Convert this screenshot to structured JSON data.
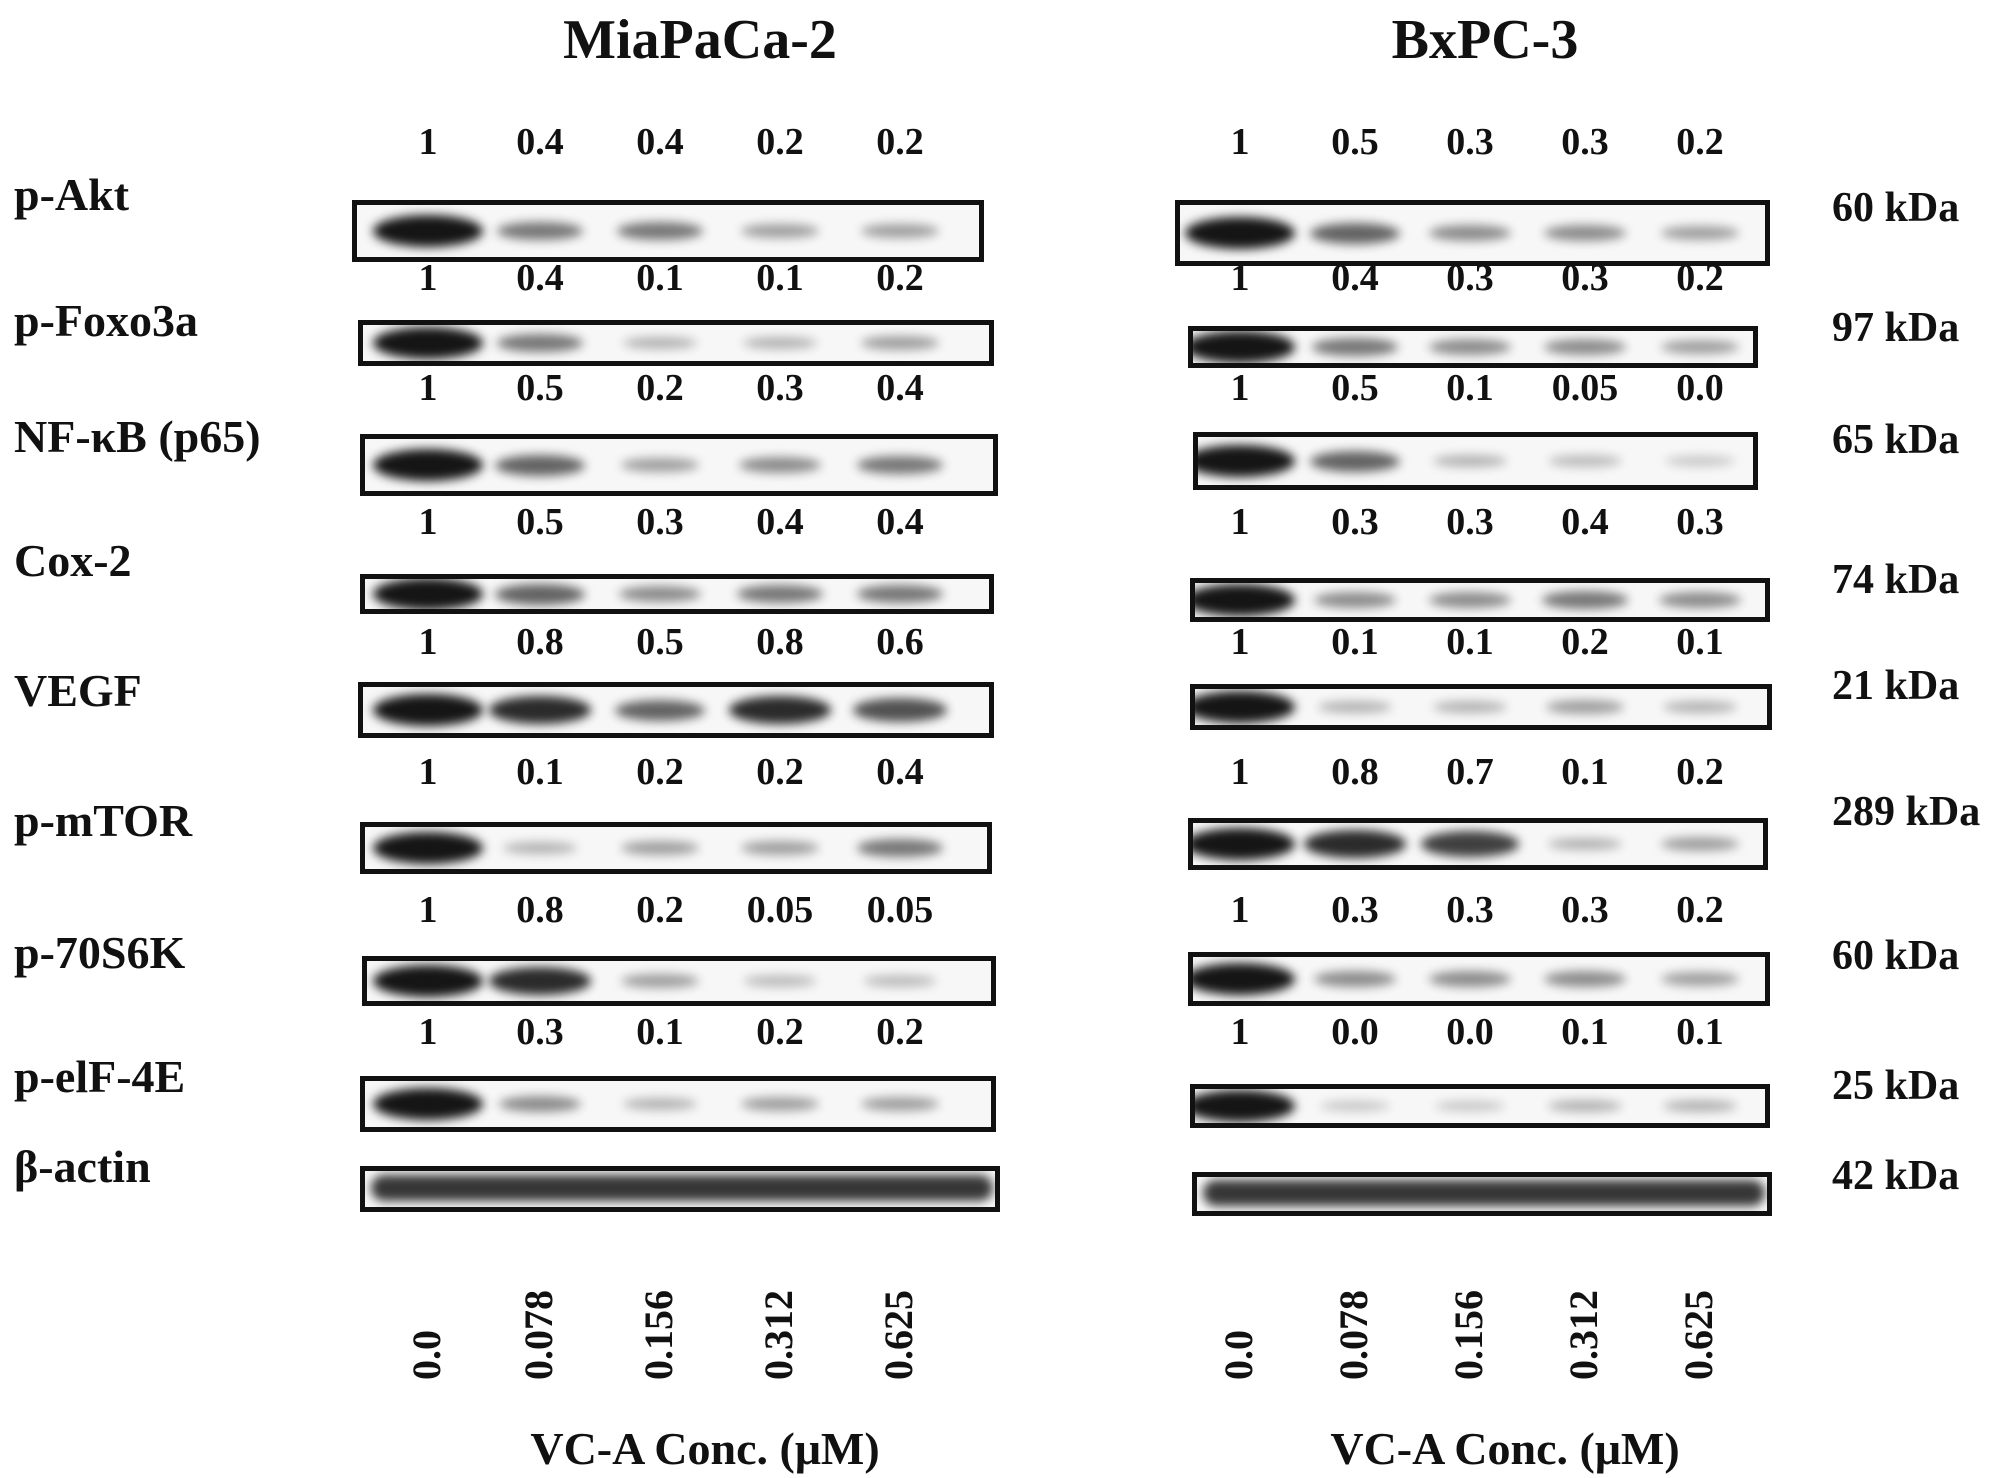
{
  "panels": {
    "left_title": "MiaPaCa-2",
    "right_title": "BxPC-3",
    "x_axis_label": "VC-A Conc. (μM)",
    "concentrations": [
      "0.0",
      "0.078",
      "0.156",
      "0.312",
      "0.625"
    ]
  },
  "rows": [
    {
      "label": "p-Akt",
      "kda": "60 kDa",
      "left": [
        "1",
        "0.4",
        "0.4",
        "0.2",
        "0.2"
      ],
      "right": [
        "1",
        "0.5",
        "0.3",
        "0.3",
        "0.2"
      ]
    },
    {
      "label": "p-Foxo3a",
      "kda": "97 kDa",
      "left": [
        "1",
        "0.4",
        "0.1",
        "0.1",
        "0.2"
      ],
      "right": [
        "1",
        "0.4",
        "0.3",
        "0.3",
        "0.2"
      ]
    },
    {
      "label": "NF-κB (p65)",
      "kda": "65 kDa",
      "left": [
        "1",
        "0.5",
        "0.2",
        "0.3",
        "0.4"
      ],
      "right": [
        "1",
        "0.5",
        "0.1",
        "0.05",
        "0.0"
      ]
    },
    {
      "label": "Cox-2",
      "kda": "74 kDa",
      "left": [
        "1",
        "0.5",
        "0.3",
        "0.4",
        "0.4"
      ],
      "right": [
        "1",
        "0.3",
        "0.3",
        "0.4",
        "0.3"
      ]
    },
    {
      "label": "VEGF",
      "kda": "21 kDa",
      "left": [
        "1",
        "0.8",
        "0.5",
        "0.8",
        "0.6"
      ],
      "right": [
        "1",
        "0.1",
        "0.1",
        "0.2",
        "0.1"
      ]
    },
    {
      "label": "p-mTOR",
      "kda": "289 kDa",
      "left": [
        "1",
        "0.1",
        "0.2",
        "0.2",
        "0.4"
      ],
      "right": [
        "1",
        "0.8",
        "0.7",
        "0.1",
        "0.2"
      ]
    },
    {
      "label": "p-70S6K",
      "kda": "60 kDa",
      "left": [
        "1",
        "0.8",
        "0.2",
        "0.05",
        "0.05"
      ],
      "right": [
        "1",
        "0.3",
        "0.3",
        "0.3",
        "0.2"
      ]
    },
    {
      "label": "p-elF-4E",
      "kda": "25 kDa",
      "left": [
        "1",
        "0.3",
        "0.1",
        "0.2",
        "0.2"
      ],
      "right": [
        "1",
        "0.0",
        "0.0",
        "0.1",
        "0.1"
      ]
    },
    {
      "label": "β-actin",
      "kda": "42 kDa",
      "left": [],
      "right": []
    }
  ]
}
